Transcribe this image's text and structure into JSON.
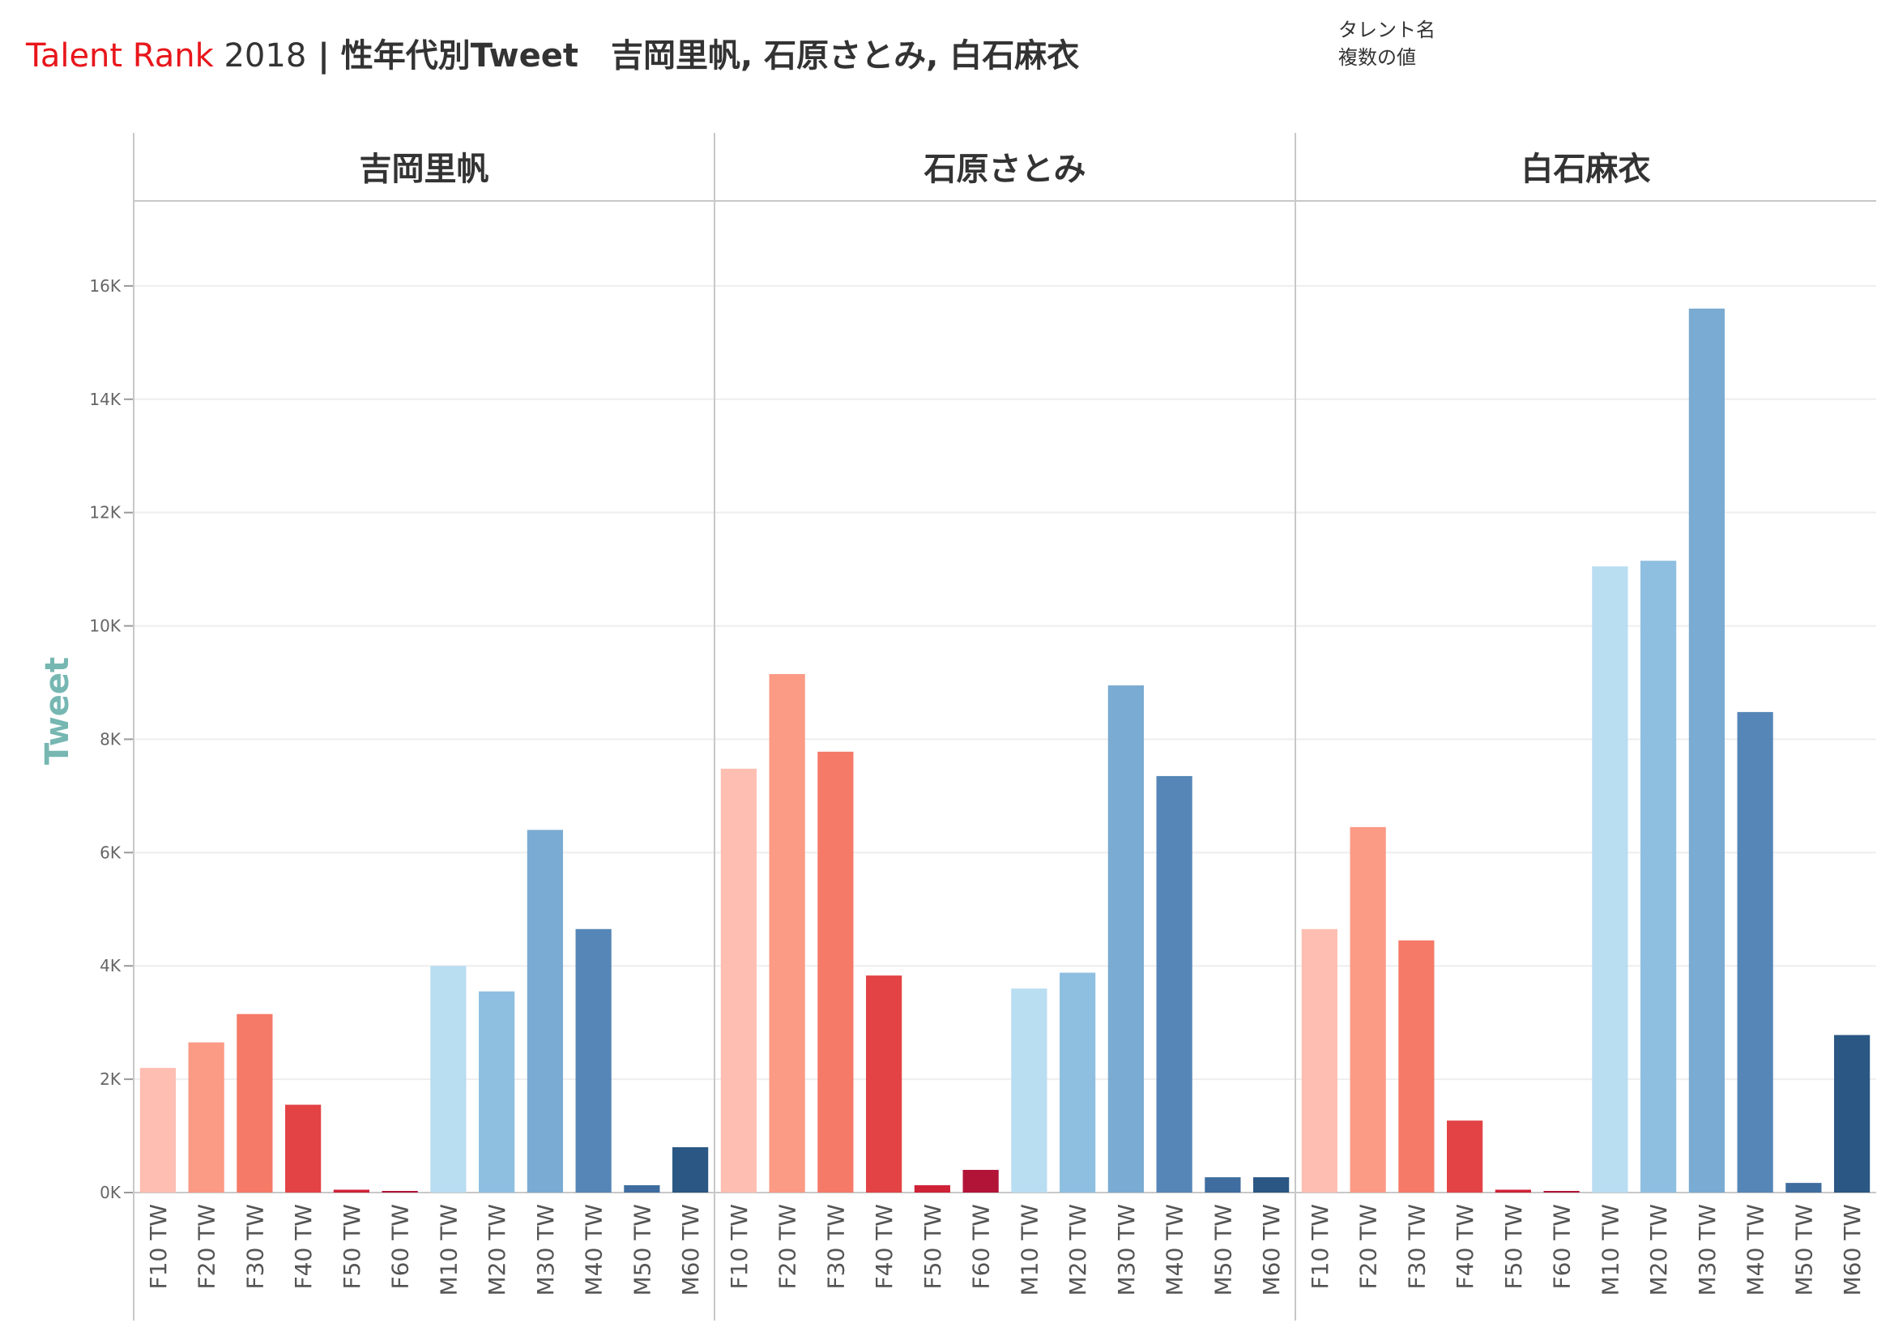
{
  "header": {
    "brand": "Talent Rank",
    "year": " 2018",
    "subtitle": " | 性年代別Tweet　吉岡里帆, 石原さとみ, 白石麻衣"
  },
  "filter": {
    "label": "タレント名",
    "value": "複数の値"
  },
  "chart_data": {
    "type": "bar",
    "ylabel": "Tweet",
    "ylim": [
      0,
      17500
    ],
    "yticks": [
      0,
      2000,
      4000,
      6000,
      8000,
      10000,
      12000,
      14000,
      16000
    ],
    "ytick_labels": [
      "0K",
      "2K",
      "4K",
      "6K",
      "8K",
      "10K",
      "12K",
      "14K",
      "16K"
    ],
    "grid": true,
    "categories": [
      "F10 TW",
      "F20 TW",
      "F30 TW",
      "F40 TW",
      "F50 TW",
      "F60 TW",
      "M10 TW",
      "M20 TW",
      "M30 TW",
      "M40 TW",
      "M50 TW",
      "M60 TW"
    ],
    "colors": [
      "#ffbeb2",
      "#fb9a85",
      "#f57a67",
      "#e34345",
      "#cf2237",
      "#b21438",
      "#b9ddf1",
      "#8fbfe0",
      "#7aabd2",
      "#5686b7",
      "#3f6d9f",
      "#2a5783"
    ],
    "series": [
      {
        "name": "吉岡里帆",
        "values": [
          2200,
          2650,
          3150,
          1550,
          50,
          20,
          4000,
          3550,
          6400,
          4650,
          130,
          800
        ]
      },
      {
        "name": "石原さとみ",
        "values": [
          7480,
          9150,
          7780,
          3830,
          130,
          400,
          3600,
          3880,
          8950,
          7350,
          270,
          270
        ]
      },
      {
        "name": "白石麻衣",
        "values": [
          4650,
          6450,
          4450,
          1270,
          50,
          20,
          11050,
          11150,
          15600,
          8480,
          170,
          2780
        ]
      }
    ]
  }
}
